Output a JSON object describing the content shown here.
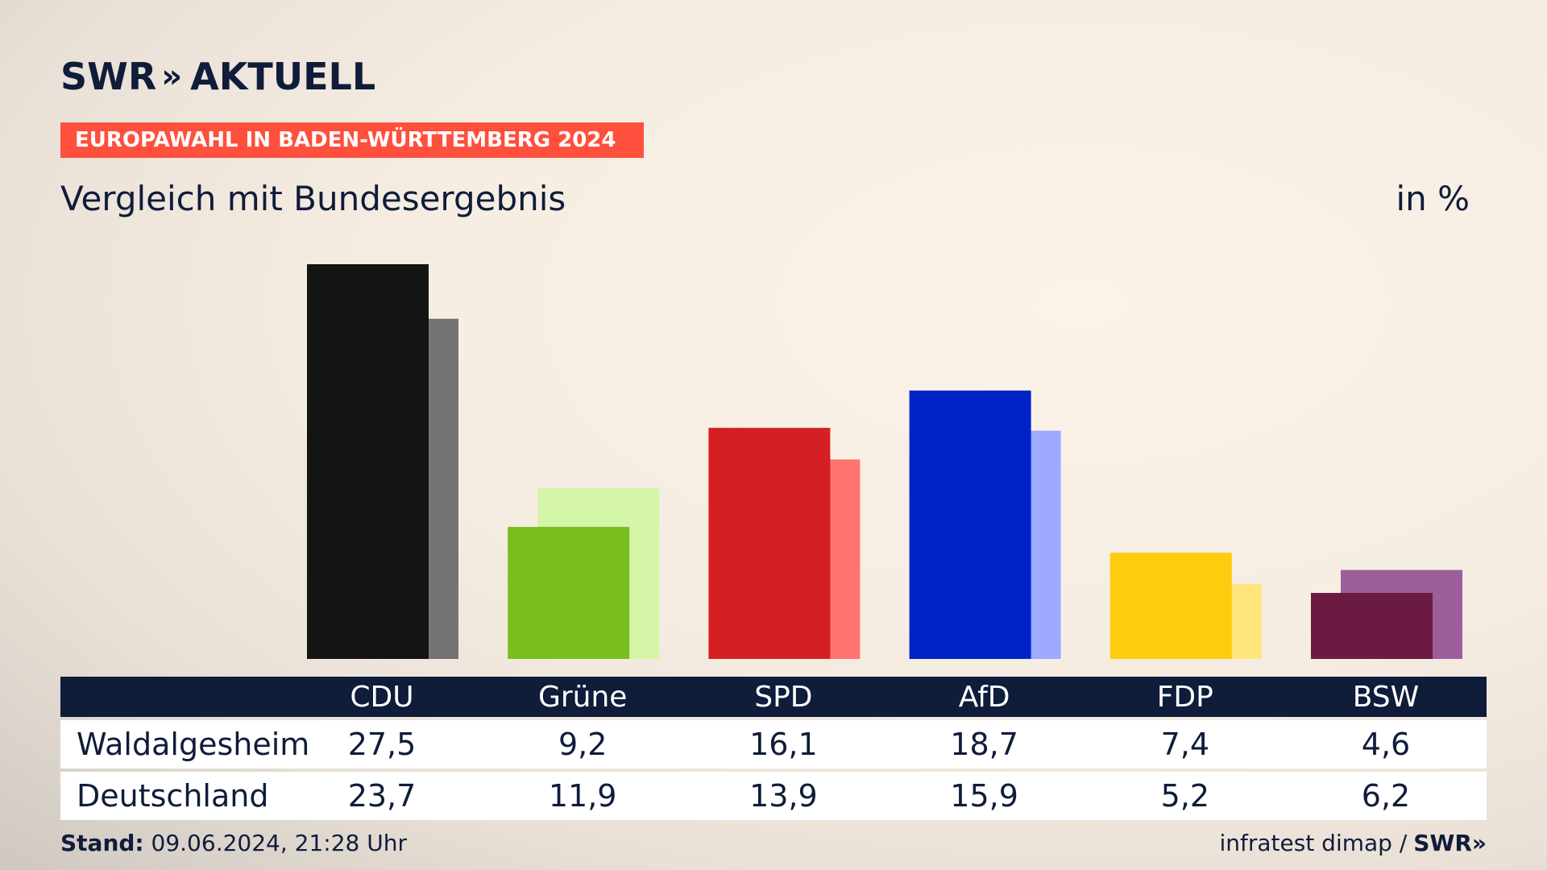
{
  "header": {
    "brand": "SWR",
    "brand_chevrons": "»",
    "product": "AKTUELL",
    "banner": "EUROPAWAHL IN BADEN-WÜRTTEMBERG 2024",
    "subtitle": "Vergleich mit Bundesergebnis",
    "unit": "in %"
  },
  "chart_data": {
    "type": "bar",
    "categories": [
      "CDU",
      "Grüne",
      "SPD",
      "AfD",
      "FDP",
      "BSW"
    ],
    "series": [
      {
        "name": "Waldalgesheim",
        "values": [
          27.5,
          9.2,
          16.1,
          18.7,
          7.4,
          4.6
        ],
        "colors": [
          "#141414",
          "#7abd1e",
          "#d61f22",
          "#0023c8",
          "#ffcc0d",
          "#6b1a42"
        ]
      },
      {
        "name": "Deutschland",
        "values": [
          23.7,
          11.9,
          13.9,
          15.9,
          5.2,
          6.2
        ],
        "colors": [
          "#737373",
          "#d5f5a8",
          "#ff7470",
          "#9eaaff",
          "#ffe57a",
          "#9d5f9b"
        ]
      }
    ],
    "ylim": [
      0,
      27.5
    ],
    "grid": false,
    "legend": "none"
  },
  "table": {
    "headers": [
      "CDU",
      "Grüne",
      "SPD",
      "AfD",
      "FDP",
      "BSW"
    ],
    "rows": [
      {
        "label": "Waldalgesheim",
        "values": [
          "27,5",
          "9,2",
          "16,1",
          "18,7",
          "7,4",
          "4,6"
        ]
      },
      {
        "label": "Deutschland",
        "values": [
          "23,7",
          "11,9",
          "13,9",
          "15,9",
          "5,2",
          "6,2"
        ]
      }
    ]
  },
  "footer": {
    "stand_label": "Stand:",
    "stand_value": "09.06.2024, 21:28 Uhr",
    "source": "infratest dimap /",
    "source_brand": "SWR",
    "source_chevrons": "»"
  }
}
